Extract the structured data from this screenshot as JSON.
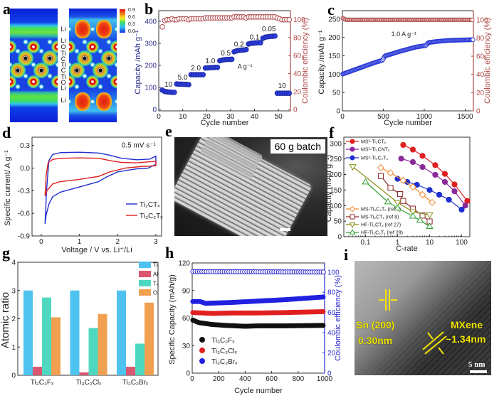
{
  "panel_labels": {
    "a": "a",
    "b": "b",
    "c": "c",
    "d": "d",
    "e": "e",
    "f": "f",
    "g": "g",
    "h": "h",
    "i": "i"
  },
  "panel_a": {
    "colorbar_ticks": [
      "0.9",
      "0.6",
      "0.3",
      "0.0"
    ],
    "layer_labels": [
      "Li",
      "O",
      "Ti",
      "C",
      "Ti",
      "C",
      "Ti",
      "O",
      "Li"
    ],
    "li_labels": [
      "Li",
      "Li"
    ]
  },
  "panel_e": {
    "batch_label": "60 g batch"
  },
  "panel_i": {
    "sn_label": "Sn (200)",
    "sn_spacing": "0.30nm",
    "mxene_label": "MXene",
    "mxene_spacing": "~1.34nm",
    "scale_bar": "5 nm"
  },
  "colors": {
    "blue": "#1f2fd0",
    "red": "#e02020",
    "ce_red": "#b04848",
    "purple": "#8a2a9a",
    "orange": "#f08a30",
    "brown": "#8a2a2a",
    "olive": "#8a8a10",
    "green": "#30a030",
    "ti": "#4fc3f0",
    "al": "#d9576f",
    "tx": "#4fd8c0",
    "o": "#f0a050",
    "black": "#111111",
    "h_blue": "#2020e0"
  },
  "chart_data": [
    {
      "panel": "b",
      "type": "scatter",
      "xlabel": "Cycle number",
      "ylabel": "Capacity /mAh g⁻¹",
      "y2label": "Coulombic efficiency (%)",
      "xlim": [
        0,
        55
      ],
      "ylim": [
        -6,
        448
      ],
      "y2lim": [
        -1.5,
        110
      ],
      "xticks": [
        "0",
        "10",
        "20",
        "30",
        "40",
        "50"
      ],
      "yticks": [
        "0",
        "100",
        "200",
        "300",
        "400"
      ],
      "y2ticks": [
        "0",
        "20",
        "40",
        "60",
        "80",
        "100"
      ],
      "capacity": [
        88,
        82,
        80,
        79,
        78,
        78,
        116,
        115,
        115,
        114,
        114,
        113,
        158,
        158,
        158,
        158,
        158,
        158,
        188,
        189,
        190,
        190,
        191,
        191,
        221,
        224,
        226,
        227,
        227,
        228,
        262,
        266,
        268,
        269,
        270,
        272,
        297,
        300,
        301,
        302,
        303,
        303,
        323,
        328,
        330,
        331,
        332,
        333,
        74,
        74,
        74,
        74,
        74,
        74
      ],
      "coulombic_efficiency": [
        92,
        99,
        100,
        100,
        101,
        100,
        100,
        101,
        101,
        101,
        101,
        100,
        101,
        101,
        101,
        101,
        101,
        101,
        102,
        102,
        102,
        102,
        102,
        102,
        102,
        102,
        102,
        102,
        102,
        102,
        103,
        103,
        103,
        103,
        103,
        102,
        103,
        103,
        103,
        103,
        103,
        103,
        103,
        103,
        103,
        103,
        103,
        103,
        102,
        101,
        100,
        100,
        100,
        100
      ],
      "rate_labels": [
        {
          "text": "10",
          "x": 4,
          "y": 103
        },
        {
          "text": "5.0",
          "x": 10,
          "y": 135
        },
        {
          "text": "2.0",
          "x": 15.5,
          "y": 178
        },
        {
          "text": "1.0",
          "x": 21.5,
          "y": 210
        },
        {
          "text": "0.5",
          "x": 28,
          "y": 245
        },
        {
          "text": "0.2",
          "x": 33.5,
          "y": 285
        },
        {
          "text": "0.1",
          "x": 40,
          "y": 318
        },
        {
          "text": "0.05",
          "x": 46,
          "y": 355
        },
        {
          "text": "10",
          "x": 51.5,
          "y": 97
        }
      ],
      "rate_unit": {
        "text": "A g⁻¹",
        "x": 36,
        "y": 185
      }
    },
    {
      "panel": "c",
      "type": "scatter",
      "xlabel": "Cycle number",
      "ylabel": "Capacity /mAh g⁻¹",
      "y2label": "Coulombic efficiency (%)",
      "xlim": [
        0,
        1600
      ],
      "ylim": [
        0,
        273
      ],
      "y2lim": [
        0,
        110
      ],
      "xticks": [
        "0",
        "500",
        "1000",
        "1500"
      ],
      "yticks": [
        "0",
        "50",
        "100",
        "150",
        "200",
        "250"
      ],
      "y2ticks": [
        "0",
        "20",
        "40",
        "60",
        "80",
        "100"
      ],
      "capacity_points": [
        [
          0,
          100
        ],
        [
          100,
          108
        ],
        [
          200,
          116
        ],
        [
          300,
          124
        ],
        [
          400,
          132
        ],
        [
          490,
          138
        ],
        [
          520,
          150
        ],
        [
          600,
          155
        ],
        [
          700,
          162
        ],
        [
          800,
          168
        ],
        [
          900,
          174
        ],
        [
          1020,
          178
        ],
        [
          1050,
          186
        ],
        [
          1150,
          189
        ],
        [
          1300,
          192
        ],
        [
          1450,
          193
        ],
        [
          1600,
          194
        ]
      ],
      "ce_points": [
        [
          0,
          102
        ],
        [
          40,
          100
        ],
        [
          1600,
          100
        ]
      ],
      "annotation": {
        "text": "1.0 A g⁻¹",
        "x": 750,
        "y": 203
      }
    },
    {
      "panel": "d",
      "type": "line",
      "xlabel": "Voltage / V vs. Li⁺/Li",
      "ylabel": "Specific current/ A g⁻¹",
      "xlim": [
        -0.24,
        3.15
      ],
      "ylim": [
        -0.9,
        0.41
      ],
      "xticks": [
        "0",
        "1",
        "2",
        "3"
      ],
      "yticks": [
        "-0.9",
        "-0.6",
        "-0.3",
        "0.0",
        "0.3"
      ],
      "annotation": {
        "text": "0.5 mV s⁻¹",
        "x": 2.55,
        "y": 0.3
      },
      "legend": "bottom-right",
      "series": [
        {
          "name": "Ti₂CTₓ",
          "color": "#1f2fd0",
          "points": [
            [
              0.1,
              -0.74
            ],
            [
              0.14,
              -0.3
            ],
            [
              0.2,
              0.1
            ],
            [
              0.3,
              0.18
            ],
            [
              0.5,
              0.205
            ],
            [
              1,
              0.21
            ],
            [
              1.5,
              0.2
            ],
            [
              1.8,
              0.17
            ],
            [
              2.1,
              0.13
            ],
            [
              2.5,
              0.11
            ],
            [
              2.85,
              0.12
            ],
            [
              3.0,
              0.16
            ],
            [
              3.0,
              0.05
            ],
            [
              2.8,
              0.0
            ],
            [
              2.5,
              -0.01
            ],
            [
              2.0,
              -0.05
            ],
            [
              1.7,
              -0.12
            ],
            [
              1.5,
              -0.18
            ],
            [
              1.0,
              -0.25
            ],
            [
              0.5,
              -0.32
            ],
            [
              0.3,
              -0.38
            ],
            [
              0.2,
              -0.48
            ],
            [
              0.13,
              -0.62
            ],
            [
              0.1,
              -0.74
            ]
          ]
        },
        {
          "name": "Ti₃C₂Tₓ",
          "color": "#e02020",
          "points": [
            [
              0.1,
              -0.37
            ],
            [
              0.13,
              -0.1
            ],
            [
              0.18,
              0.07
            ],
            [
              0.3,
              0.115
            ],
            [
              0.5,
              0.13
            ],
            [
              1,
              0.135
            ],
            [
              1.5,
              0.13
            ],
            [
              1.8,
              0.1
            ],
            [
              2.1,
              0.075
            ],
            [
              2.5,
              0.07
            ],
            [
              3.0,
              0.09
            ],
            [
              3.0,
              0.03
            ],
            [
              2.6,
              0.02
            ],
            [
              2.2,
              0.0
            ],
            [
              1.8,
              -0.05
            ],
            [
              1.5,
              -0.11
            ],
            [
              1.0,
              -0.15
            ],
            [
              0.5,
              -0.18
            ],
            [
              0.3,
              -0.21
            ],
            [
              0.15,
              -0.3
            ],
            [
              0.1,
              -0.37
            ]
          ]
        }
      ]
    },
    {
      "panel": "f",
      "type": "line",
      "xlabel": "C-rate",
      "ylabel": "Capacity (mAh g⁻¹)",
      "xscale": "log",
      "xlim": [
        0.021,
        180
      ],
      "ylim": [
        0,
        320
      ],
      "xticks": [
        "0.1",
        "1",
        "10",
        "100"
      ],
      "yticks": [
        "0",
        "50",
        "100",
        "150",
        "200",
        "250",
        "300"
      ],
      "legend": "top-left / bottom-left",
      "series": [
        {
          "name": "MS³-Ti₂CTₓ",
          "color": "#e02020",
          "marker": "circle",
          "filled": true,
          "points": [
            [
              1.5,
              295
            ],
            [
              3,
              280
            ],
            [
              6,
              260
            ],
            [
              15,
              230
            ],
            [
              30,
              202
            ],
            [
              60,
              168
            ],
            [
              150,
              115
            ]
          ]
        },
        {
          "name": "MS³-Ti₃CNTₓ",
          "color": "#8a2a9a",
          "marker": "circle",
          "filled": true,
          "points": [
            [
              1.3,
              251
            ],
            [
              3,
              240
            ],
            [
              6,
              224
            ],
            [
              15,
              199
            ],
            [
              30,
              176
            ],
            [
              60,
              146
            ],
            [
              130,
              100
            ]
          ]
        },
        {
          "name": "MS³-Ti₃C₂Tₓ",
          "color": "#1f2fd0",
          "marker": "circle",
          "filled": true,
          "points": [
            [
              1,
              186
            ],
            [
              2,
              176
            ],
            [
              4,
              167
            ],
            [
              10,
              150
            ],
            [
              20,
              135
            ],
            [
              40,
              119
            ],
            [
              100,
              87
            ]
          ]
        },
        {
          "name": "MS-Ti₃C₂Tₓ (ref 8)",
          "color": "#f08a30",
          "marker": "diamond",
          "filled": false,
          "points": [
            [
              0.3,
              222
            ],
            [
              0.6,
              205
            ],
            [
              1.5,
              181
            ],
            [
              3,
              160
            ],
            [
              6,
              135
            ],
            [
              12,
              110
            ]
          ]
        },
        {
          "name": "MS-Ti₂CTₓ (ref 8)",
          "color": "#8a2a2a",
          "marker": "square",
          "filled": false,
          "points": [
            [
              0.3,
              195
            ],
            [
              0.6,
              157
            ],
            [
              1.2,
              137
            ],
            [
              1.5,
              115
            ],
            [
              3,
              90
            ],
            [
              6,
              68
            ],
            [
              10,
              49
            ]
          ]
        },
        {
          "name": "HF-Ti₂CTₓ (ref 27)",
          "color": "#8a8a10",
          "marker": "tri-down",
          "filled": false,
          "points": [
            [
              0.04,
              225
            ],
            [
              1,
              110
            ],
            [
              3,
              80
            ],
            [
              10,
              70
            ]
          ]
        },
        {
          "name": "HF-Ti₃C₂Tₓ (ref 28)",
          "color": "#30a030",
          "marker": "tri-up",
          "filled": false,
          "points": [
            [
              0.1,
              176
            ],
            [
              0.5,
              112
            ],
            [
              1,
              92
            ],
            [
              3,
              66
            ],
            [
              5,
              53
            ],
            [
              10,
              33
            ]
          ]
        }
      ]
    },
    {
      "panel": "g",
      "type": "bar",
      "ylabel": "Atomic ratio",
      "xlabel": "",
      "ylim": [
        0,
        4
      ],
      "yticks": [
        "0",
        "1",
        "2",
        "3",
        "4"
      ],
      "categories": [
        "Ti₃C₂Fₓ",
        "Ti₃C₂Clₓ",
        "Ti₃C₂Brₓ"
      ],
      "legend": "top-right",
      "series": [
        {
          "name": "Ti",
          "color": "#4fc3f0",
          "values": [
            3,
            3,
            3
          ]
        },
        {
          "name": "Al",
          "color": "#d9576f",
          "values": [
            0.3,
            0.1,
            0.3
          ]
        },
        {
          "name": "Tₓ",
          "color": "#4fd8c0",
          "values": [
            2.75,
            1.67,
            1.12
          ]
        },
        {
          "name": "O",
          "color": "#f0a050",
          "values": [
            2.05,
            2.17,
            2.57
          ]
        }
      ]
    },
    {
      "panel": "h",
      "type": "scatter",
      "xlabel": "Cycle number",
      "ylabel": "Specific Capacity (mAh/g)",
      "y2label": "Coulombic efficiency (%)",
      "xlim": [
        0,
        1000
      ],
      "ylim": [
        0,
        120
      ],
      "y2lim": [
        0,
        109
      ],
      "xticks": [
        "0",
        "200",
        "400",
        "600",
        "800",
        "1000"
      ],
      "yticks": [
        "0",
        "30",
        "60",
        "90",
        "120"
      ],
      "y2ticks": [
        "0",
        "20",
        "40",
        "60",
        "80",
        "100"
      ],
      "legend": "bottom-left",
      "series": [
        {
          "name": "Ti₃C₂Fₓ",
          "color": "#111111",
          "points": [
            [
              0,
              58
            ],
            [
              50,
              55
            ],
            [
              150,
              53
            ],
            [
              250,
              52
            ],
            [
              400,
              51
            ],
            [
              500,
              51.5
            ],
            [
              700,
              51.5
            ],
            [
              1000,
              52
            ]
          ]
        },
        {
          "name": "Ti₃C₂Clₓ",
          "color": "#e02020",
          "points": [
            [
              0,
              66
            ],
            [
              150,
              65
            ],
            [
              300,
              65.5
            ],
            [
              500,
              65.5
            ],
            [
              700,
              66
            ],
            [
              1000,
              67
            ]
          ]
        },
        {
          "name": "Ti₃C₂Brₓ",
          "color": "#2020e0",
          "points": [
            [
              0,
              78
            ],
            [
              60,
              78
            ],
            [
              100,
              76
            ],
            [
              300,
              77
            ],
            [
              500,
              78.5
            ],
            [
              700,
              80
            ],
            [
              1000,
              83
            ]
          ]
        }
      ],
      "ce_points": [
        [
          0,
          100.5
        ],
        [
          1000,
          100
        ]
      ]
    }
  ]
}
